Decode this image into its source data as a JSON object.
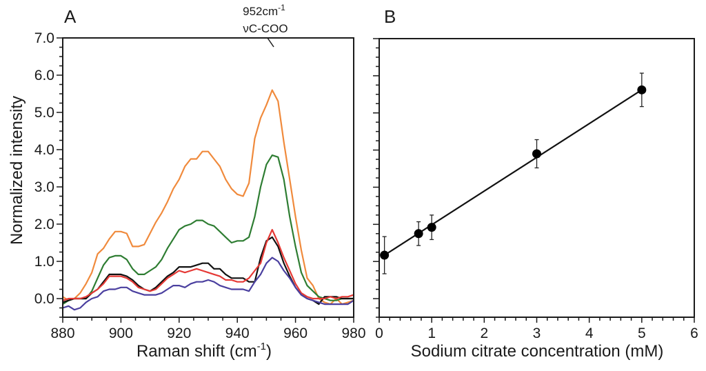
{
  "chart_data": [
    {
      "panel": "A",
      "type": "line",
      "xlabel": "Raman shift (cm",
      "xlabel_sup": "-1",
      "xlabel_end": ")",
      "ylabel": "Normalized intensity",
      "xlim": [
        880,
        980
      ],
      "ylim": [
        -0.5,
        7.0
      ],
      "xticks": [
        880,
        900,
        920,
        940,
        960,
        980
      ],
      "xtick_labels": [
        "880",
        "900",
        "920",
        "940",
        "960",
        "980"
      ],
      "yticks": [
        0,
        1,
        2,
        3,
        4,
        5,
        6,
        7
      ],
      "ytick_labels": [
        "0.0",
        "1.0",
        "2.0",
        "3.0",
        "4.0",
        "5.0",
        "6.0",
        "7.0"
      ],
      "annotation": {
        "line1": "952cm",
        "line1_sup": "-1",
        "line2": "νC-COO",
        "x": 952,
        "y": 5.6
      },
      "grid": false,
      "x": [
        880,
        882,
        884,
        886,
        888,
        890,
        892,
        894,
        896,
        898,
        900,
        902,
        904,
        906,
        908,
        910,
        912,
        914,
        916,
        918,
        920,
        922,
        924,
        926,
        928,
        930,
        932,
        934,
        936,
        938,
        940,
        942,
        944,
        946,
        948,
        950,
        952,
        954,
        956,
        958,
        960,
        962,
        964,
        966,
        968,
        970,
        972,
        974,
        976,
        978,
        980
      ],
      "series": [
        {
          "name": "orange",
          "color": "#f08a3c",
          "values": [
            0.05,
            -0.05,
            0.0,
            0.15,
            0.4,
            0.7,
            1.2,
            1.35,
            1.6,
            1.8,
            1.8,
            1.75,
            1.4,
            1.4,
            1.45,
            1.75,
            2.05,
            2.3,
            2.6,
            2.95,
            3.2,
            3.55,
            3.75,
            3.75,
            3.95,
            3.95,
            3.75,
            3.55,
            3.2,
            2.95,
            2.8,
            2.75,
            3.1,
            4.3,
            4.85,
            5.2,
            5.6,
            5.3,
            4.2,
            3.2,
            2.2,
            1.3,
            0.55,
            0.35,
            0.0,
            -0.1,
            -0.15,
            0.0,
            -0.15,
            -0.1,
            -0.05
          ]
        },
        {
          "name": "green",
          "color": "#2e7d32",
          "values": [
            -0.15,
            -0.05,
            0.0,
            0.0,
            0.0,
            0.2,
            0.55,
            0.9,
            1.1,
            1.15,
            1.15,
            1.05,
            0.8,
            0.65,
            0.65,
            0.75,
            0.85,
            1.05,
            1.35,
            1.6,
            1.85,
            1.95,
            2.0,
            2.1,
            2.1,
            2.0,
            1.95,
            1.8,
            1.65,
            1.5,
            1.55,
            1.55,
            1.65,
            2.2,
            3.0,
            3.6,
            3.85,
            3.8,
            3.2,
            2.2,
            1.4,
            0.7,
            0.35,
            0.2,
            0.05,
            0.0,
            -0.05,
            -0.05,
            0.0,
            0.0,
            0.0
          ]
        },
        {
          "name": "black",
          "color": "#111111",
          "values": [
            -0.1,
            -0.05,
            0.0,
            0.0,
            0.0,
            0.15,
            0.25,
            0.45,
            0.65,
            0.65,
            0.65,
            0.6,
            0.5,
            0.35,
            0.25,
            0.2,
            0.3,
            0.45,
            0.6,
            0.7,
            0.85,
            0.85,
            0.85,
            0.9,
            0.95,
            0.95,
            0.8,
            0.8,
            0.65,
            0.55,
            0.55,
            0.55,
            0.45,
            0.45,
            1.1,
            1.55,
            1.65,
            1.4,
            0.95,
            0.6,
            0.3,
            0.1,
            0.0,
            -0.05,
            -0.15,
            0.05,
            0.05,
            0.05,
            0.0,
            0.0,
            0.0
          ]
        },
        {
          "name": "red",
          "color": "#e53935",
          "values": [
            -0.05,
            0.0,
            0.0,
            0.0,
            0.05,
            0.15,
            0.25,
            0.4,
            0.6,
            0.6,
            0.6,
            0.55,
            0.45,
            0.3,
            0.25,
            0.2,
            0.25,
            0.4,
            0.55,
            0.65,
            0.75,
            0.7,
            0.75,
            0.8,
            0.75,
            0.7,
            0.65,
            0.6,
            0.5,
            0.5,
            0.45,
            0.45,
            0.55,
            0.75,
            0.95,
            1.5,
            1.85,
            1.5,
            1.1,
            0.75,
            0.4,
            0.15,
            0.05,
            0.0,
            0.0,
            0.0,
            0.05,
            0.0,
            0.05,
            0.05,
            0.1
          ]
        },
        {
          "name": "blue",
          "color": "#4a3f9f",
          "values": [
            -0.25,
            -0.2,
            -0.3,
            -0.25,
            -0.1,
            0.0,
            0.05,
            0.2,
            0.25,
            0.25,
            0.3,
            0.3,
            0.2,
            0.15,
            0.1,
            0.1,
            0.1,
            0.15,
            0.25,
            0.35,
            0.35,
            0.3,
            0.4,
            0.45,
            0.45,
            0.5,
            0.45,
            0.35,
            0.3,
            0.25,
            0.25,
            0.25,
            0.2,
            0.45,
            0.65,
            0.95,
            1.1,
            1.0,
            0.75,
            0.55,
            0.3,
            0.1,
            0.0,
            -0.05,
            -0.1,
            -0.15,
            -0.15,
            -0.15,
            -0.15,
            -0.15,
            -0.05
          ]
        }
      ]
    },
    {
      "panel": "B",
      "type": "scatter",
      "xlabel": "Sodium citrate concentration (mM)",
      "ylabel": "",
      "xlim": [
        0,
        6
      ],
      "ylim": [
        -0.5,
        7.0
      ],
      "xticks": [
        0,
        1,
        2,
        3,
        4,
        5,
        6
      ],
      "xtick_labels": [
        "0",
        "1",
        "2",
        "3",
        "4",
        "5",
        "6"
      ],
      "yticks": [
        0,
        1,
        2,
        3,
        4,
        5,
        6,
        7
      ],
      "grid": false,
      "fit_line": {
        "x0": 0.1,
        "y0": 1.17,
        "x1": 5.0,
        "y1": 5.62
      },
      "points": [
        {
          "x": 0.1,
          "y": 1.17,
          "err": 0.5
        },
        {
          "x": 0.75,
          "y": 1.75,
          "err": 0.32
        },
        {
          "x": 1.0,
          "y": 1.92,
          "err": 0.33
        },
        {
          "x": 3.0,
          "y": 3.9,
          "err": 0.38
        },
        {
          "x": 5.0,
          "y": 5.62,
          "err": 0.45
        }
      ]
    }
  ]
}
